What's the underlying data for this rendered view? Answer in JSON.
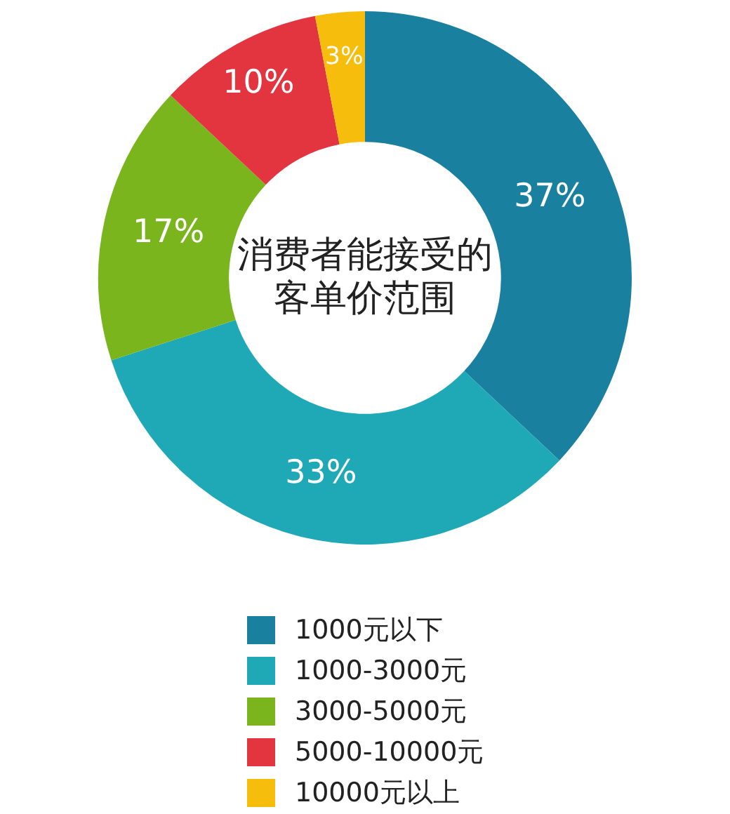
{
  "chart_data": {
    "type": "donut",
    "title": "消费者能接受的客单价范围",
    "categories": [
      "1000元以下",
      "1000-3000元",
      "3000-5000元",
      "5000-10000元",
      "10000元以上"
    ],
    "values": [
      37,
      33,
      17,
      10,
      3
    ],
    "colors": [
      "#1a80a0",
      "#1fa9b6",
      "#7ab51d",
      "#e3353f",
      "#f6bd0c"
    ],
    "value_labels": [
      "37%",
      "33%",
      "17%",
      "10%",
      "3%"
    ],
    "legend": "bottom"
  }
}
